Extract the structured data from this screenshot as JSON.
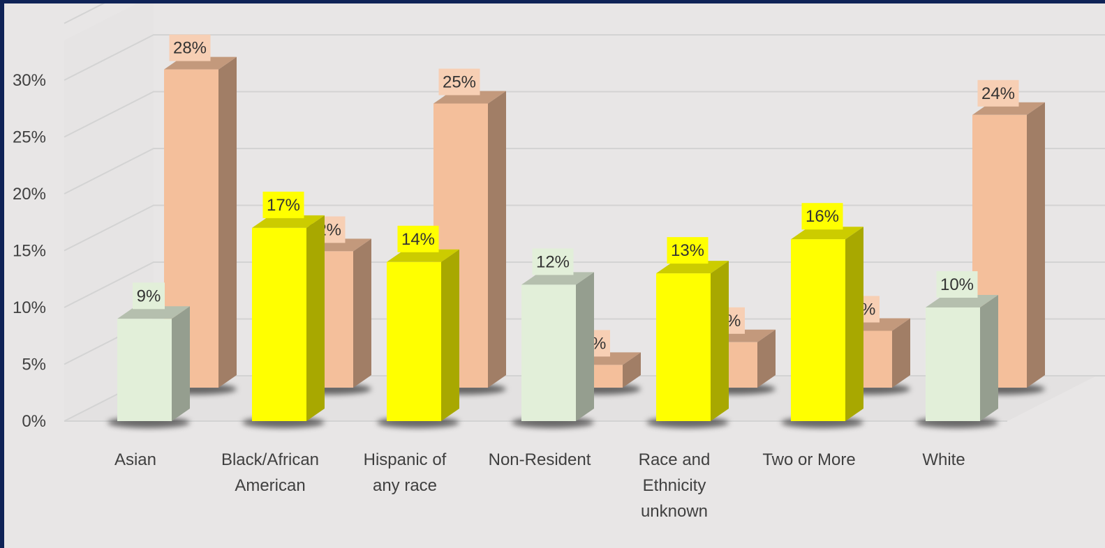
{
  "chart_data": {
    "type": "bar",
    "categories": [
      "Asian",
      "Black/African American",
      "Hispanic of any race",
      "Non-Resident",
      "Race and Ethnicity unknown",
      "Two or More",
      "White"
    ],
    "category_lines": [
      [
        "Asian"
      ],
      [
        "Black/African",
        "American"
      ],
      [
        "Hispanic of",
        "any race"
      ],
      [
        "Non-Resident"
      ],
      [
        "Race and",
        "Ethnicity",
        "unknown"
      ],
      [
        "Two or More"
      ],
      [
        "White"
      ]
    ],
    "series": [
      {
        "values": [
          9,
          17,
          14,
          12,
          13,
          16,
          10
        ],
        "labels": [
          "9%",
          "17%",
          "14%",
          "12%",
          "13%",
          "16%",
          "10%"
        ],
        "colors": [
          "#e2efd9",
          "#ffff00",
          "#ffff00",
          "#e2efd9",
          "#ffff00",
          "#ffff00",
          "#e2efd9"
        ]
      },
      {
        "values": [
          28,
          12,
          25,
          2,
          4,
          5,
          24
        ],
        "labels": [
          "28%",
          "12%",
          "25%",
          "2%",
          "4%",
          "5%",
          "24%"
        ],
        "colors": [
          "#f4bf9b",
          "#f4bf9b",
          "#f4bf9b",
          "#f4bf9b",
          "#f4bf9b",
          "#f4bf9b",
          "#f4bf9b"
        ]
      }
    ],
    "yticks": [
      "0%",
      "5%",
      "10%",
      "15%",
      "20%",
      "25%",
      "30%"
    ],
    "ylim": [
      0,
      30
    ],
    "xlabel": "",
    "ylabel": "",
    "title": "",
    "style": "3d-column",
    "grid": true,
    "legend": "none"
  }
}
